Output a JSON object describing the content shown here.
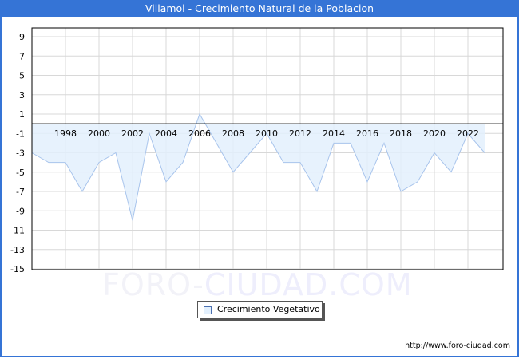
{
  "header": {
    "title": "Villamol - Crecimiento Natural de la Poblacion"
  },
  "legend": {
    "label": "Crecimiento Vegetativo",
    "swatch_color": "#e3f0fd",
    "line_color": "#a8c4ec"
  },
  "watermark": {
    "part1": "FORO-",
    "part2": "CIUDAD.COM"
  },
  "footer": {
    "url": "http://www.foro-ciudad.com"
  },
  "colors": {
    "accent": "#3574d6",
    "fill": "#e3f0fd",
    "line": "#a8c4ec",
    "grid": "#d8d8d8"
  },
  "chart_data": {
    "type": "area",
    "title": "Villamol - Crecimiento Natural de la Poblacion",
    "xlabel": "",
    "ylabel": "",
    "x": [
      1996,
      1997,
      1998,
      1999,
      2000,
      2001,
      2002,
      2003,
      2004,
      2005,
      2006,
      2007,
      2008,
      2009,
      2010,
      2011,
      2012,
      2013,
      2014,
      2015,
      2016,
      2017,
      2018,
      2019,
      2020,
      2021,
      2022,
      2023
    ],
    "series": [
      {
        "name": "Crecimiento Vegetativo",
        "values": [
          -3,
          -4,
          -4,
          -7,
          -4,
          -3,
          -10,
          -1,
          -6,
          -4,
          1,
          -2,
          -5,
          -3,
          -1,
          -4,
          -4,
          -7,
          -2,
          -2,
          -6,
          -2,
          -7,
          -6,
          -3,
          -5,
          -1,
          -3
        ]
      }
    ],
    "x_tick_labels": [
      "1998",
      "2000",
      "2002",
      "2004",
      "2006",
      "2008",
      "2010",
      "2012",
      "2014",
      "2016",
      "2018",
      "2020",
      "2022"
    ],
    "y_tick_labels": [
      "9",
      "7",
      "5",
      "3",
      "1",
      "-1",
      "-3",
      "-5",
      "-7",
      "-9",
      "-11",
      "-13",
      "-15"
    ],
    "ylim": [
      -15,
      10
    ],
    "xlim": [
      1996,
      2024
    ],
    "grid": true,
    "legend_position": "bottom-center"
  }
}
